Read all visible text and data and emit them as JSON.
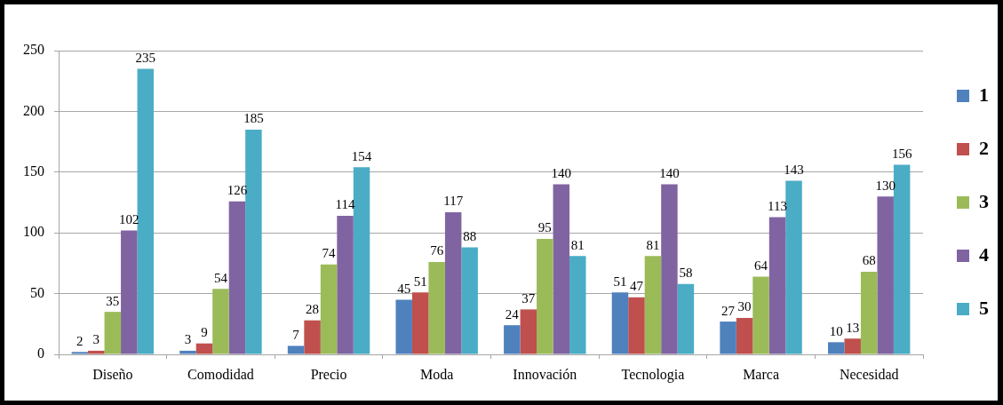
{
  "chart_data": {
    "type": "bar",
    "categories": [
      "Diseño",
      "Comodidad",
      "Precio",
      "Moda",
      "Innovación",
      "Tecnologia",
      "Marca",
      "Necesidad"
    ],
    "series": [
      {
        "name": "1",
        "color": "#4f81bd",
        "values": [
          2,
          3,
          7,
          45,
          24,
          51,
          27,
          10
        ]
      },
      {
        "name": "2",
        "color": "#c0504d",
        "values": [
          3,
          9,
          28,
          51,
          37,
          47,
          30,
          13
        ]
      },
      {
        "name": "3",
        "color": "#9bbb59",
        "values": [
          35,
          54,
          74,
          76,
          95,
          81,
          64,
          68
        ]
      },
      {
        "name": "4",
        "color": "#8064a2",
        "values": [
          102,
          126,
          114,
          117,
          140,
          140,
          113,
          130
        ]
      },
      {
        "name": "5",
        "color": "#4bacc6",
        "values": [
          235,
          185,
          154,
          88,
          81,
          58,
          143,
          156
        ]
      }
    ],
    "ylim": [
      0,
      250
    ],
    "yticks": [
      0,
      50,
      100,
      150,
      200,
      250
    ],
    "grid": "y",
    "legend": "right",
    "data_labels": true
  }
}
